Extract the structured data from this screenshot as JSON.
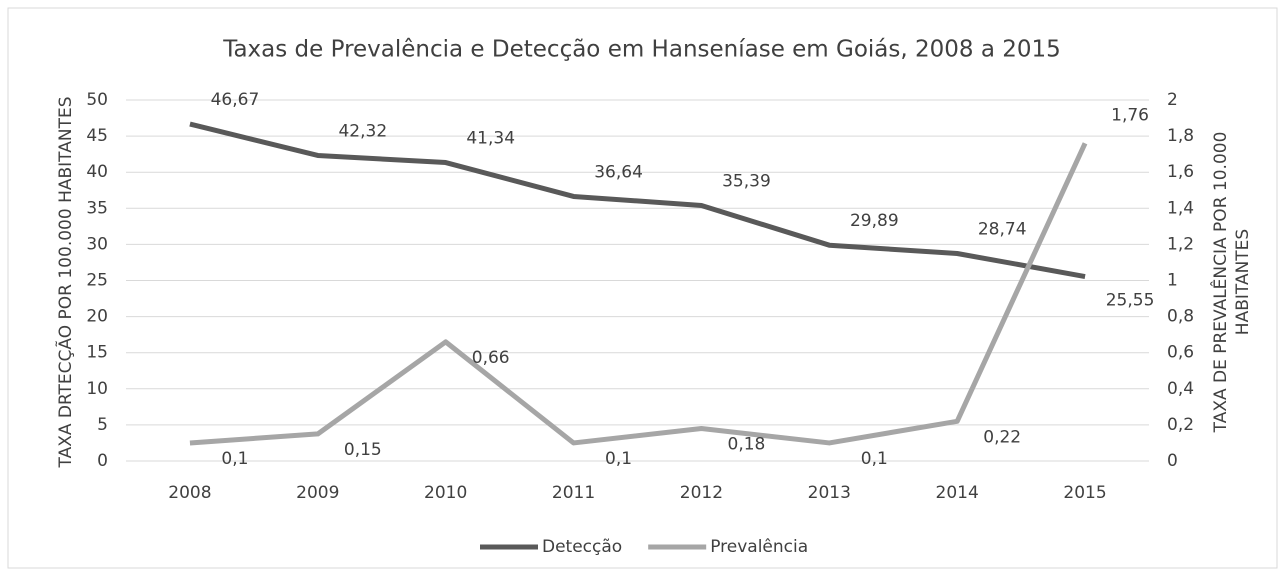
{
  "chart_data": {
    "type": "line",
    "title": "Taxas de Prevalência e Detecção em Hanseníase em Goiás, 2008 a 2015",
    "ylabel": "TAXA DRTECÇÃO POR 100.000 HABITANTES",
    "y2label": [
      "TAXA DE PREVALÊNCIA POR 10.000",
      "HABITANTES"
    ],
    "categories": [
      "2008",
      "2009",
      "2010",
      "2011",
      "2012",
      "2013",
      "2014",
      "2015"
    ],
    "series": [
      {
        "name": "Detecção",
        "color": "#595959",
        "axis": "y",
        "values": [
          46.67,
          42.32,
          41.34,
          36.64,
          35.39,
          29.89,
          28.74,
          25.55
        ],
        "value_labels": [
          "46,67",
          "42,32",
          "41,34",
          "36,64",
          "35,39",
          "29,89",
          "28,74",
          "25,55"
        ]
      },
      {
        "name": "Prevalência",
        "color": "#a6a6a6",
        "axis": "y2",
        "values": [
          0.1,
          0.15,
          0.66,
          0.1,
          0.18,
          0.1,
          0.22,
          1.76
        ],
        "value_labels": [
          "0,1",
          "0,15",
          "0,66",
          "0,1",
          "0,18",
          "0,1",
          "0,22",
          "1,76"
        ]
      }
    ],
    "ylim": [
      0,
      50
    ],
    "yticks": [
      0,
      5,
      10,
      15,
      20,
      25,
      30,
      35,
      40,
      45,
      50
    ],
    "y2lim": [
      0,
      2
    ],
    "y2ticks": [
      0,
      {
        "value": 0.2,
        "label": "0,2"
      },
      {
        "value": 0.4,
        "label": "0,4"
      },
      {
        "value": 0.6,
        "label": "0,6"
      },
      {
        "value": 0.8,
        "label": "0,8"
      },
      1,
      {
        "value": 1.2,
        "label": "1,2"
      },
      {
        "value": 1.4,
        "label": "1,4"
      },
      {
        "value": 1.6,
        "label": "1,6"
      },
      {
        "value": 1.8,
        "label": "1,8"
      },
      2
    ],
    "grid": true,
    "legend": "bottom"
  }
}
